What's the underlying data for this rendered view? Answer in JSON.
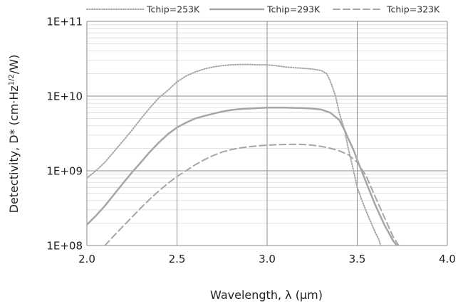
{
  "chart_data": {
    "type": "line",
    "xlabel": "Wavelength, λ (μm)",
    "ylabel": {
      "main": "Detectivity, D* (cm·Hz",
      "sup": "1/2",
      "tail": "/W)"
    },
    "xlim": [
      2.0,
      4.0
    ],
    "ylim": [
      100000000.0,
      100000000000.0
    ],
    "yscale": "log",
    "grid": {
      "x_major": true,
      "y_major": true,
      "y_minor": true
    },
    "legend_position": "top",
    "x_ticks": [
      {
        "v": 2.0,
        "label": "2.0"
      },
      {
        "v": 2.5,
        "label": "2.5"
      },
      {
        "v": 3.0,
        "label": "3.0"
      },
      {
        "v": 3.5,
        "label": "3.5"
      },
      {
        "v": 4.0,
        "label": "4.0"
      }
    ],
    "y_ticks": [
      {
        "v": 100000000.0,
        "label": "1E+08"
      },
      {
        "v": 1000000000.0,
        "label": "1E+09"
      },
      {
        "v": 10000000000.0,
        "label": "1E+10"
      },
      {
        "v": 100000000000.0,
        "label": "1E+11"
      }
    ],
    "series": [
      {
        "name": "Tchip=253K",
        "color": "#a6a6a6",
        "style": "dotted",
        "x": [
          2.0,
          2.05,
          2.1,
          2.15,
          2.2,
          2.25,
          2.3,
          2.35,
          2.4,
          2.45,
          2.5,
          2.55,
          2.6,
          2.65,
          2.7,
          2.75,
          2.8,
          2.85,
          2.9,
          2.95,
          3.0,
          3.05,
          3.1,
          3.15,
          3.2,
          3.25,
          3.3,
          3.33,
          3.35,
          3.38,
          3.4,
          3.43,
          3.45,
          3.48,
          3.5,
          3.53,
          3.56,
          3.6,
          3.62,
          3.63
        ],
        "y": [
          800000000.0,
          1000000000.0,
          1300000000.0,
          1800000000.0,
          2500000000.0,
          3500000000.0,
          5000000000.0,
          7000000000.0,
          9500000000.0,
          12000000000.0,
          15500000000.0,
          18500000000.0,
          21000000000.0,
          23000000000.0,
          24500000000.0,
          25500000000.0,
          26200000000.0,
          26500000000.0,
          26500000000.0,
          26200000000.0,
          26200000000.0,
          25500000000.0,
          24500000000.0,
          24000000000.0,
          23500000000.0,
          23000000000.0,
          22000000000.0,
          20000000000.0,
          16000000000.0,
          10000000000.0,
          6000000000.0,
          3500000000.0,
          2000000000.0,
          1000000000.0,
          600000000.0,
          380000000.0,
          250000000.0,
          150000000.0,
          120000000.0,
          100000000.0
        ]
      },
      {
        "name": "Tchip=293K",
        "color": "#a6a6a6",
        "style": "solid",
        "x": [
          2.0,
          2.05,
          2.1,
          2.15,
          2.2,
          2.25,
          2.3,
          2.35,
          2.4,
          2.45,
          2.5,
          2.55,
          2.6,
          2.65,
          2.7,
          2.75,
          2.8,
          2.85,
          2.9,
          2.95,
          3.0,
          3.05,
          3.1,
          3.15,
          3.2,
          3.25,
          3.3,
          3.35,
          3.4,
          3.43,
          3.45,
          3.48,
          3.5,
          3.55,
          3.6,
          3.65,
          3.7,
          3.72
        ],
        "y": [
          190000000.0,
          250000000.0,
          340000000.0,
          480000000.0,
          680000000.0,
          950000000.0,
          1300000000.0,
          1800000000.0,
          2400000000.0,
          3100000000.0,
          3800000000.0,
          4400000000.0,
          5000000000.0,
          5400000000.0,
          5800000000.0,
          6200000000.0,
          6500000000.0,
          6700000000.0,
          6800000000.0,
          6900000000.0,
          7000000000.0,
          7000000000.0,
          7000000000.0,
          6950000000.0,
          6900000000.0,
          6800000000.0,
          6600000000.0,
          6000000000.0,
          4800000000.0,
          3500000000.0,
          2700000000.0,
          1900000000.0,
          1400000000.0,
          700000000.0,
          350000000.0,
          190000000.0,
          115000000.0,
          100000000.0
        ]
      },
      {
        "name": "Tchip=323K",
        "color": "#a6a6a6",
        "style": "dashed",
        "x": [
          2.1,
          2.15,
          2.2,
          2.25,
          2.3,
          2.35,
          2.4,
          2.45,
          2.5,
          2.55,
          2.6,
          2.65,
          2.7,
          2.75,
          2.8,
          2.85,
          2.9,
          2.95,
          3.0,
          3.05,
          3.1,
          3.15,
          3.2,
          3.25,
          3.3,
          3.35,
          3.4,
          3.45,
          3.5,
          3.55,
          3.6,
          3.65,
          3.7,
          3.73
        ],
        "y": [
          100000000.0,
          135000000.0,
          180000000.0,
          240000000.0,
          320000000.0,
          420000000.0,
          540000000.0,
          680000000.0,
          840000000.0,
          1000000000.0,
          1200000000.0,
          1400000000.0,
          1600000000.0,
          1780000000.0,
          1920000000.0,
          2020000000.0,
          2100000000.0,
          2160000000.0,
          2200000000.0,
          2230000000.0,
          2250000000.0,
          2260000000.0,
          2250000000.0,
          2200000000.0,
          2120000000.0,
          2000000000.0,
          1850000000.0,
          1650000000.0,
          1300000000.0,
          850000000.0,
          450000000.0,
          240000000.0,
          130000000.0,
          100000000.0
        ]
      }
    ]
  }
}
